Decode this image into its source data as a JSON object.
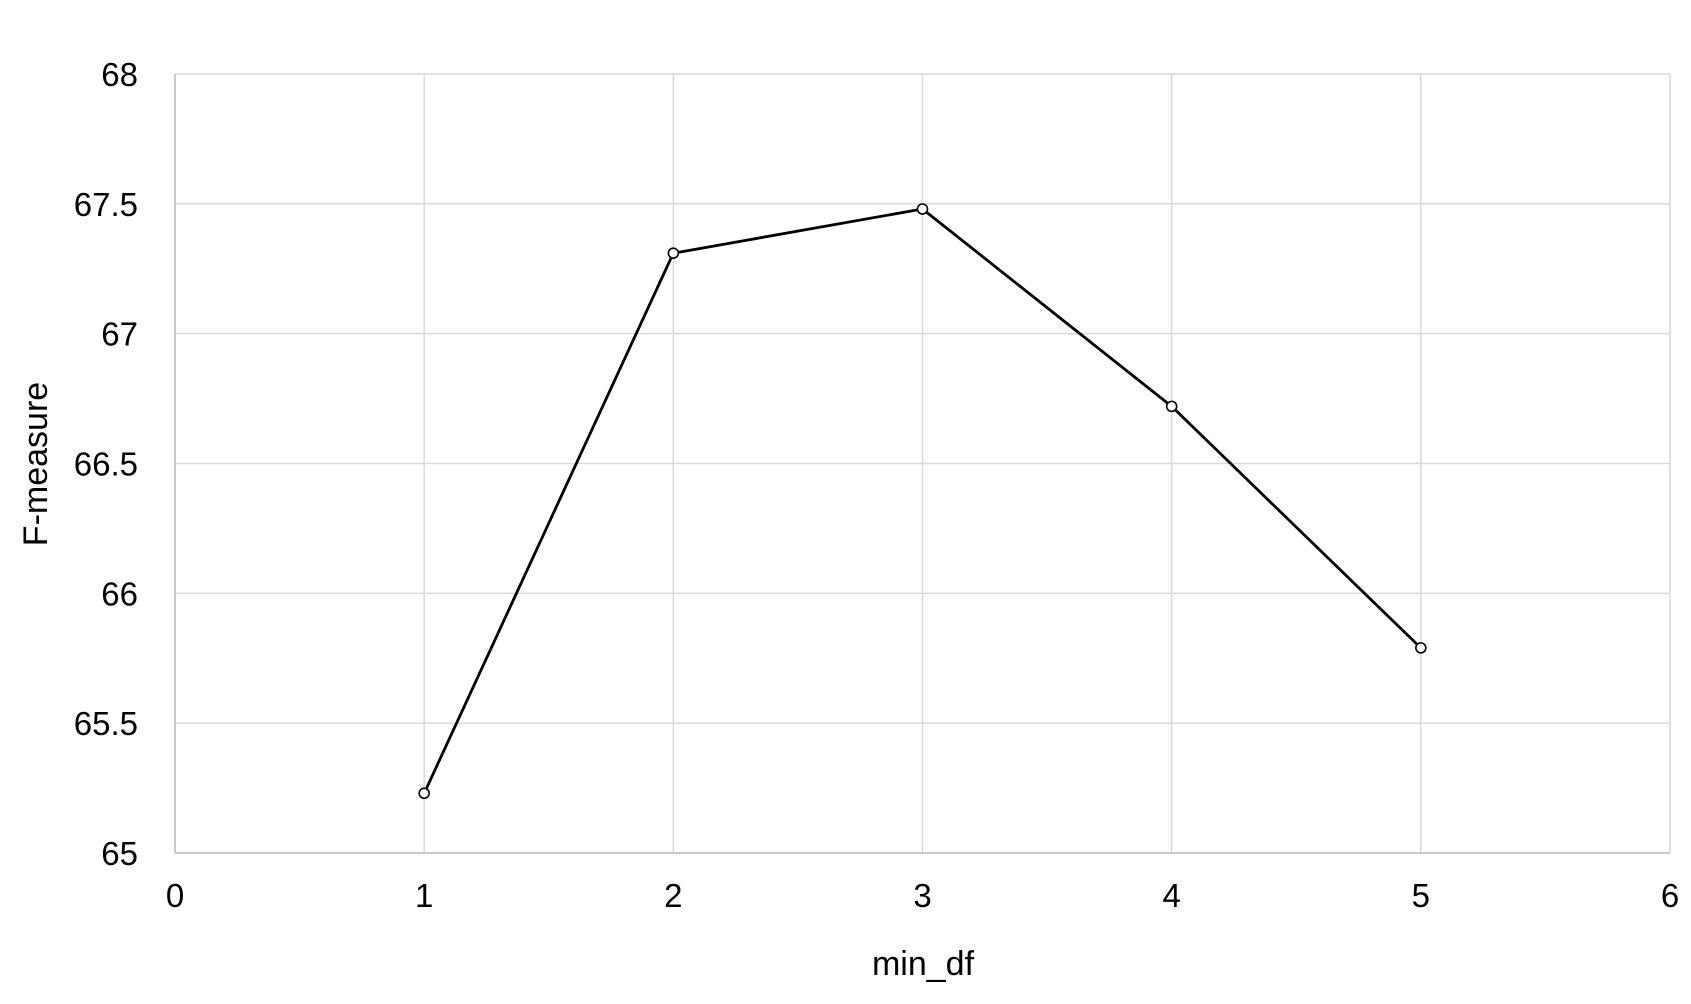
{
  "chart_data": {
    "type": "line",
    "title": "",
    "xlabel": "min_df",
    "ylabel": "F-measure",
    "xlim": [
      0,
      6
    ],
    "ylim": [
      65,
      68
    ],
    "x_ticks": [
      "0",
      "1",
      "2",
      "3",
      "4",
      "5",
      "6"
    ],
    "y_ticks": [
      "65",
      "65.5",
      "66",
      "66.5",
      "67",
      "67.5",
      "68"
    ],
    "grid": true,
    "legend": "none",
    "series": [
      {
        "x": [
          1,
          2,
          3,
          4,
          5
        ],
        "values": [
          65.23,
          67.31,
          67.48,
          66.72,
          65.79
        ]
      }
    ],
    "colors": {
      "line": "#000000",
      "marker_fill": "#ffffff",
      "grid": "#d9d9d9",
      "text": "#000000"
    }
  }
}
